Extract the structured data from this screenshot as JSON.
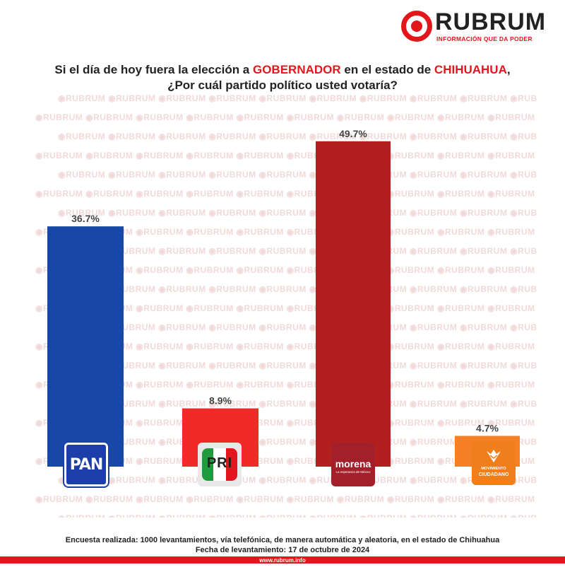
{
  "brand": {
    "name": "RUBRUM",
    "tagline": "INFORMACIÓN QUE DA PODER",
    "accent": "#e3161b"
  },
  "question": {
    "part1": "Si el día de hoy fuera la elección a ",
    "highlight1": "GOBERNADOR",
    "part2": " en el estado de ",
    "highlight2": "CHIHUAHUA",
    "part3": ",",
    "line2": "¿Por cuál partido político usted votaría?"
  },
  "watermark_text": "RUBRUM",
  "chart_data": {
    "type": "bar",
    "categories": [
      "PAN",
      "PRI",
      "morena",
      "MOVIMIENTO CIUDADANO"
    ],
    "values": [
      36.7,
      8.9,
      49.7,
      4.7
    ],
    "value_labels": [
      "36.7%",
      "8.9%",
      "49.7%",
      "4.7%"
    ],
    "colors": [
      "#1748a8",
      "#ef2a27",
      "#b1201f",
      "#f58025"
    ],
    "ylim": [
      0,
      55
    ],
    "grid": false,
    "legend": "none"
  },
  "party_logos": {
    "pan": "PAN",
    "pri": "PRI",
    "morena": "morena",
    "morena_sub": "La esperanza de México",
    "mc_line1": "MOVIMIENTO",
    "mc_line2": "CIUDADANO"
  },
  "footer": {
    "note1": "Encuesta realizada: 1000 levantamientos, vía telefónica, de manera automática y aleatoria, en el estado de Chihuahua",
    "note2": "Fecha de levantamiento: 17 de octubre de 2024",
    "url": "www.rubrum.info"
  }
}
